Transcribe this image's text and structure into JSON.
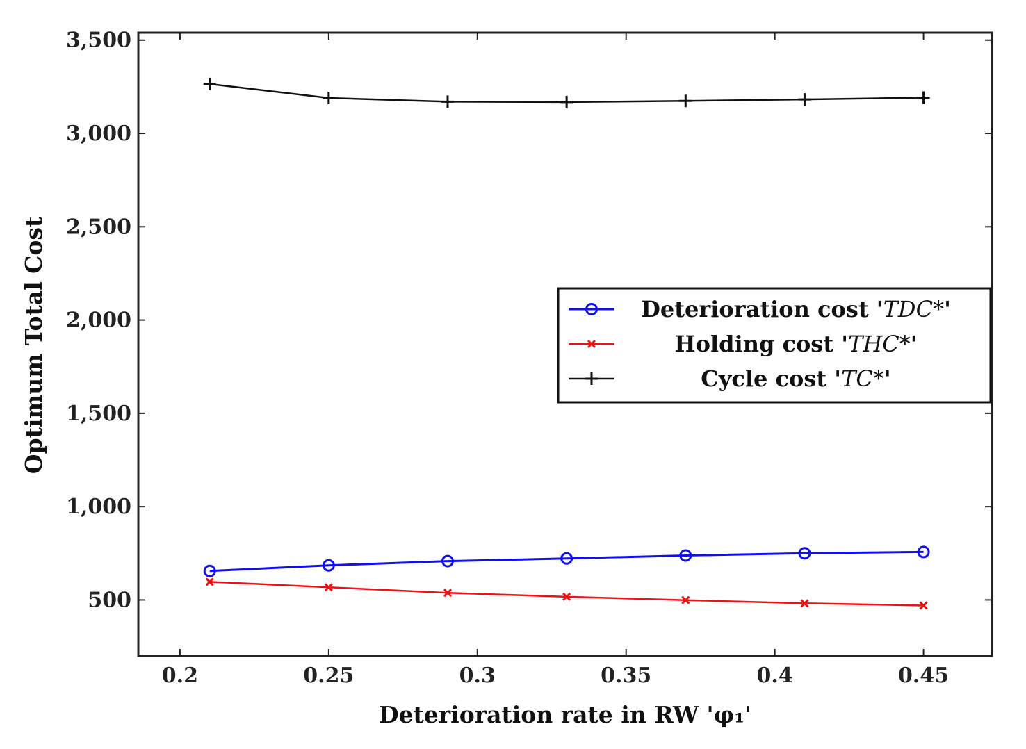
{
  "chart_data": {
    "type": "line",
    "title": "",
    "xlabel": "Deterioration rate in RW 'φ₁'",
    "ylabel": "Optimum Total Cost",
    "xlim": [
      0.186,
      0.473
    ],
    "ylim": [
      200,
      3540
    ],
    "xticks": [
      {
        "value": 0.2,
        "label": "0.2"
      },
      {
        "value": 0.25,
        "label": "0.25"
      },
      {
        "value": 0.3,
        "label": "0.3"
      },
      {
        "value": 0.35,
        "label": "0.35"
      },
      {
        "value": 0.4,
        "label": "0.4"
      },
      {
        "value": 0.45,
        "label": "0.45"
      }
    ],
    "yticks": [
      {
        "value": 500,
        "label": "500"
      },
      {
        "value": 1000,
        "label": "1,000"
      },
      {
        "value": 1500,
        "label": "1,500"
      },
      {
        "value": 2000,
        "label": "2,000"
      },
      {
        "value": 2500,
        "label": "2,500"
      },
      {
        "value": 3000,
        "label": "3,000"
      },
      {
        "value": 3500,
        "label": "3,500"
      }
    ],
    "x": [
      0.21,
      0.25,
      0.29,
      0.33,
      0.37,
      0.41,
      0.45
    ],
    "series": [
      {
        "name": "Deterioration cost",
        "legend_prefix": "Deterioration cost '",
        "legend_math": "TDC*",
        "legend_suffix": "'",
        "color": "#1010ee",
        "marker": "circle",
        "values": [
          655,
          685,
          708,
          722,
          738,
          750,
          757
        ]
      },
      {
        "name": "Holding cost",
        "legend_prefix": "Holding cost '",
        "legend_math": "THC*",
        "legend_suffix": "'",
        "color": "#ee1111",
        "marker": "x",
        "values": [
          597,
          568,
          538,
          517,
          499,
          482,
          470
        ]
      },
      {
        "name": "Cycle cost",
        "legend_prefix": "Cycle cost '",
        "legend_math": "TC*",
        "legend_suffix": "'",
        "color": "#111111",
        "marker": "plus",
        "values": [
          3265,
          3190,
          3170,
          3168,
          3174,
          3182,
          3192
        ]
      }
    ],
    "legend_position": "center-right"
  }
}
